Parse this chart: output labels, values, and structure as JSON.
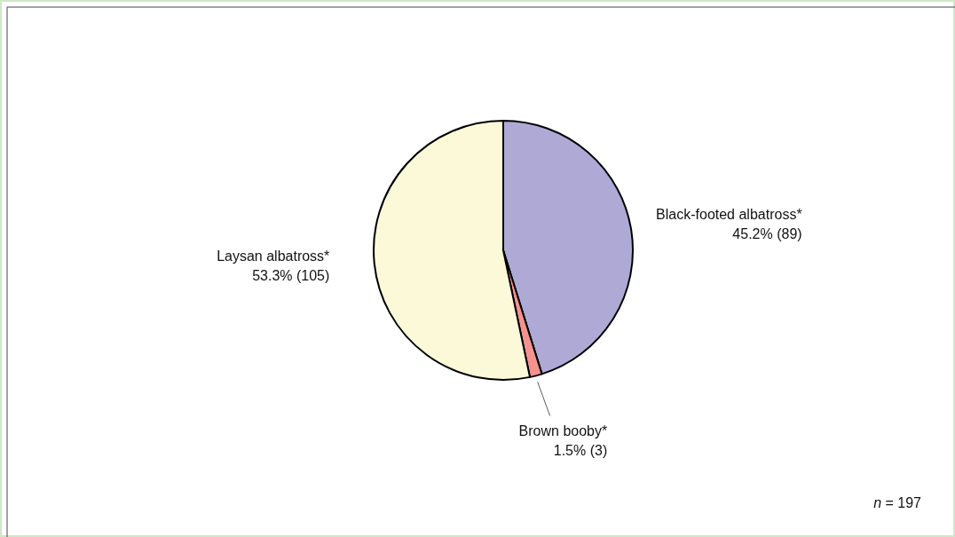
{
  "chart_data": {
    "type": "pie",
    "categories": [
      "Black-footed albatross*",
      "Brown booby*",
      "Laysan albatross*"
    ],
    "values": [
      89,
      3,
      105
    ],
    "value_labels": [
      "45.2% (89)",
      "1.5% (3)",
      "53.3% (105)"
    ],
    "colors": [
      "#aeaad5",
      "#f4928f",
      "#fcf9d9"
    ],
    "annotations": [
      "n = 197"
    ]
  }
}
